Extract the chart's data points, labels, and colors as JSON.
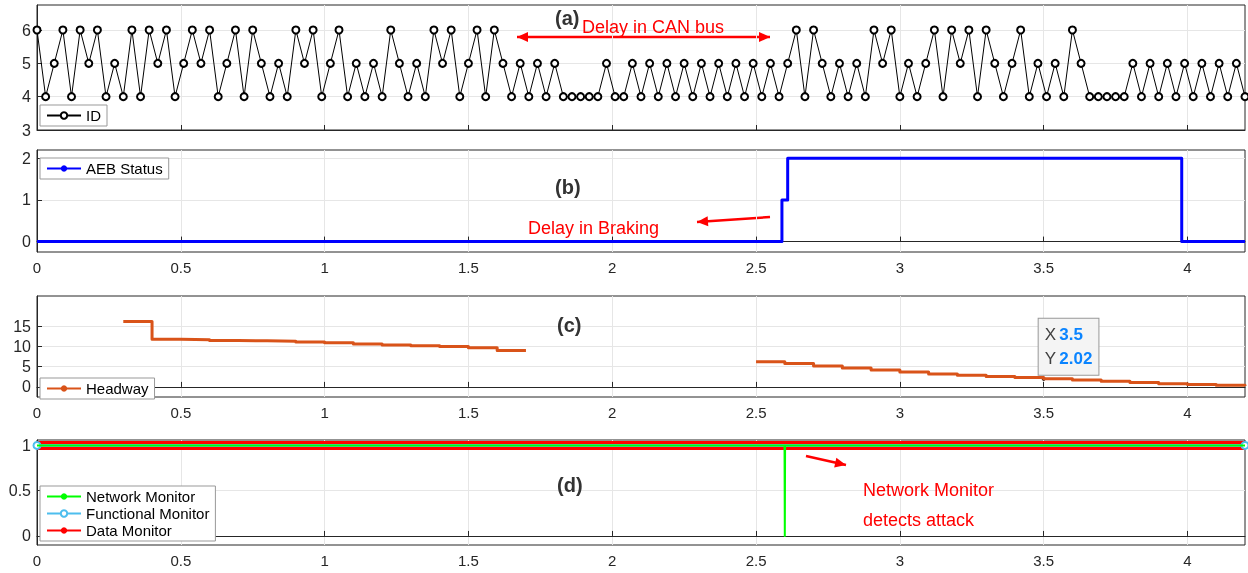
{
  "chart_data": [
    {
      "type": "line",
      "marker": "circle",
      "grid": true,
      "legend": "bottom left",
      "tick_labels": "y",
      "x": [
        0,
        0.03,
        0.06,
        0.09,
        0.12,
        0.15,
        0.18,
        0.21,
        0.24,
        0.27,
        0.3,
        0.33,
        0.36,
        0.39,
        0.42,
        0.45,
        0.48,
        0.51,
        0.54,
        0.57,
        0.6,
        0.63,
        0.66,
        0.69,
        0.72,
        0.75,
        0.78,
        0.81,
        0.84,
        0.87,
        0.9,
        0.93,
        0.96,
        0.99,
        1.02,
        1.05,
        1.08,
        1.11,
        1.14,
        1.17,
        1.2,
        1.23,
        1.26,
        1.29,
        1.32,
        1.35,
        1.38,
        1.41,
        1.44,
        1.47,
        1.5,
        1.53,
        1.56,
        1.59,
        1.62,
        1.65,
        1.68,
        1.71,
        1.74,
        1.77,
        1.8,
        1.83,
        1.86,
        1.89,
        1.92,
        1.95,
        1.98,
        2.01,
        2.04,
        2.07,
        2.1,
        2.13,
        2.16,
        2.19,
        2.22,
        2.25,
        2.28,
        2.31,
        2.34,
        2.37,
        2.4,
        2.43,
        2.46,
        2.49,
        2.52,
        2.55,
        2.58,
        2.61,
        2.64,
        2.67,
        2.7,
        2.73,
        2.76,
        2.79,
        2.82,
        2.85,
        2.88,
        2.91,
        2.94,
        2.97,
        3,
        3.03,
        3.06,
        3.09,
        3.12,
        3.15,
        3.18,
        3.21,
        3.24,
        3.27,
        3.3,
        3.33,
        3.36,
        3.39,
        3.42,
        3.45,
        3.48,
        3.51,
        3.54,
        3.57,
        3.6,
        3.63,
        3.66,
        3.69,
        3.72,
        3.75,
        3.78,
        3.81,
        3.84,
        3.87,
        3.9,
        3.93,
        3.96,
        3.99,
        4.02,
        4.05,
        4.08,
        4.11,
        4.14,
        4.17,
        4.2
      ],
      "series": [
        {
          "name": "ID",
          "color": "#000000",
          "values": [
            6,
            4,
            5,
            6,
            4,
            6,
            5,
            6,
            4,
            5,
            4,
            6,
            4,
            6,
            5,
            6,
            4,
            5,
            6,
            5,
            6,
            4,
            5,
            6,
            4,
            6,
            5,
            4,
            5,
            4,
            6,
            5,
            6,
            4,
            5,
            6,
            4,
            5,
            4,
            5,
            4,
            6,
            5,
            4,
            5,
            4,
            6,
            5,
            6,
            4,
            5,
            6,
            4,
            6,
            5,
            4,
            5,
            4,
            5,
            4,
            5,
            4,
            4,
            4,
            4,
            4,
            5,
            4,
            4,
            5,
            4,
            5,
            4,
            5,
            4,
            5,
            4,
            5,
            4,
            5,
            4,
            5,
            4,
            5,
            4,
            5,
            4,
            5,
            6,
            4,
            6,
            5,
            4,
            5,
            4,
            5,
            4,
            6,
            5,
            6,
            4,
            5,
            4,
            5,
            6,
            4,
            6,
            5,
            6,
            4,
            6,
            5,
            4,
            5,
            6,
            4,
            5,
            4,
            5,
            4,
            6,
            5,
            4,
            4,
            4,
            4,
            4,
            5,
            4,
            5,
            4,
            5,
            4,
            5,
            4,
            5,
            4,
            5,
            4,
            5,
            4
          ]
        }
      ],
      "xlim": [
        0,
        4.2
      ],
      "xticks": [
        0,
        0.5,
        1,
        1.5,
        2,
        2.5,
        3,
        3.5,
        4
      ],
      "ylim": [
        3,
        6.75
      ],
      "yticks": [
        3,
        4,
        5,
        6
      ],
      "annotations": [
        "(a)",
        "Delay in CAN bus"
      ]
    },
    {
      "type": "step",
      "grid": true,
      "legend": "top left",
      "x": [
        0,
        2.59,
        2.61,
        3.98,
        4.2
      ],
      "series": [
        {
          "name": "AEB Status",
          "color": "#0000ff",
          "values": [
            0,
            1,
            2,
            0,
            0
          ]
        }
      ],
      "xlim": [
        0,
        4.2
      ],
      "xticks": [
        0,
        0.5,
        1,
        1.5,
        2,
        2.5,
        3,
        3.5,
        4
      ],
      "ylim": [
        -0.25,
        2.2
      ],
      "yticks": [
        0,
        1,
        2
      ],
      "annotations": [
        "(b)",
        "Delay in Braking"
      ]
    },
    {
      "type": "step",
      "grid": true,
      "legend": "bottom left",
      "series": [
        {
          "name": "Headway",
          "color": "#d95319",
          "x": [
            0.3,
            0.4,
            0.5,
            0.6,
            0.7,
            0.8,
            0.9,
            1,
            1.1,
            1.2,
            1.3,
            1.4,
            1.5,
            1.6,
            1.7
          ],
          "values": [
            16.2,
            11.8,
            11.7,
            11.5,
            11.4,
            11.3,
            11.1,
            10.9,
            10.6,
            10.4,
            10.2,
            10,
            9.7,
            9,
            9
          ]
        },
        {
          "color": "#d95319",
          "x": [
            2.5,
            2.6,
            2.7,
            2.8,
            2.9,
            3,
            3.1,
            3.2,
            3.3,
            3.4,
            3.5,
            3.6,
            3.7,
            3.8,
            3.9,
            4,
            4.1,
            4.2
          ],
          "values": [
            6.2,
            5.8,
            5.2,
            4.7,
            4.2,
            3.7,
            3.2,
            2.9,
            2.6,
            2.3,
            2.02,
            1.7,
            1.4,
            1.1,
            0.8,
            0.6,
            0.4,
            0.2
          ]
        }
      ],
      "xlim": [
        0,
        4.2
      ],
      "xticks": [
        0,
        0.5,
        1,
        1.5,
        2,
        2.5,
        3,
        3.5,
        4
      ],
      "ylim": [
        -2.5,
        22.5
      ],
      "yticks": [
        0,
        5,
        10,
        15
      ],
      "annotations": [
        "(c)",
        {
          "text": "X 3.5\nY 2.02",
          "x": 3.5,
          "y": 2.02
        }
      ]
    },
    {
      "type": "line",
      "grid": true,
      "legend": "bottom left",
      "series": [
        {
          "name": "Network Monitor",
          "color": "#00ff00",
          "x": [
            0,
            2.599,
            2.6,
            2.601,
            4.2
          ],
          "values": [
            1,
            1,
            0,
            1,
            1
          ]
        },
        {
          "name": "Functional Monitor",
          "color": "#4dbeee",
          "marker": "circle",
          "x": [
            0,
            4.2
          ],
          "values": [
            1,
            1
          ]
        },
        {
          "name": "Data Monitor",
          "color": "#ff0000",
          "x": [
            0,
            4.2
          ],
          "values": [
            1,
            1
          ]
        }
      ],
      "xlim": [
        0,
        4.2
      ],
      "xticks": [
        0,
        0.5,
        1,
        1.5,
        2,
        2.5,
        3,
        3.5,
        4
      ],
      "ylim": [
        -0.1,
        1.06
      ],
      "yticks": [
        0,
        0.5,
        1
      ],
      "annotations": [
        "(d)",
        "Network Monitor\ndetects attack"
      ]
    }
  ]
}
